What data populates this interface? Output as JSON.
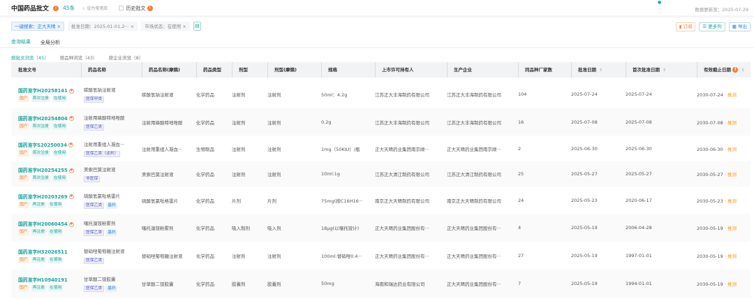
{
  "header": {
    "title": "中国药品批文",
    "count": "45条",
    "favorite": "设为常用库",
    "history": "历史批文",
    "update": "数据更新至：2025-07-29",
    "dot": "●"
  },
  "filters": [
    {
      "label": "一键搜索：正大天晴",
      "active": true
    },
    {
      "label": "批准日期：2025-01-01,2···",
      "active": false
    },
    {
      "label": "市场状态：在使用",
      "active": false
    }
  ],
  "actions": {
    "subscribe": "订阅",
    "more_cols": "更多列",
    "export": "导出"
  },
  "tabs": [
    {
      "label": "查询结果",
      "active": true
    },
    {
      "label": "全局分析",
      "active": false
    }
  ],
  "subtabs": [
    {
      "label": "按批文浏览（45）",
      "active": true
    },
    {
      "label": "按品种浏览（43）",
      "active": false
    },
    {
      "label": "按企业浏览（8）",
      "active": false
    }
  ],
  "columns": [
    "批准文号",
    "药品名称",
    "药品名称(摩熵)",
    "药品类型",
    "剂型",
    "剂型(摩熵)",
    "规格",
    "上市许可持有人",
    "生产企业",
    "同品种厂家数",
    "批准日期",
    "首次批准日期",
    "有效截止日期"
  ],
  "guess_label": "推测",
  "rows": [
    {
      "code": "国药准字H20258141",
      "badge": true,
      "tags": [
        "国产",
        "首次注册",
        "在使用"
      ],
      "name": "碳酸氢钠注射液",
      "ins": [
        "医保甲类"
      ],
      "name2": "碳酸氢钠注射液",
      "type": "化学药品",
      "form": "注射剂",
      "form2": "注射剂",
      "spec": "50ml：4.2g",
      "holder": "江苏正大丰海制药有限公司",
      "maker": "江苏正大丰海制药有限公司",
      "n": "104",
      "date": "2025-07-24",
      "first": "2025-07-24",
      "expire": "2030-07-24"
    },
    {
      "code": "国药准字H20254804",
      "badge": true,
      "tags": [
        "国产",
        "首次注册",
        "在使用"
      ],
      "name": "注射用磷酸特地唑胺",
      "ins": [
        "医保乙类"
      ],
      "name2": "注射用磷酸特地唑胺",
      "type": "化学药品",
      "form": "注射剂",
      "form2": "注射剂",
      "spec": "0.2g",
      "holder": "江苏正大丰海制药有限公司",
      "maker": "江苏正大丰海制药有限公司",
      "n": "16",
      "date": "2025-07-08",
      "first": "2025-07-08",
      "expire": "2030-07-08"
    },
    {
      "code": "国药准字S20250034",
      "badge": true,
      "tags": [
        "国产",
        "首次注册",
        "在使用"
      ],
      "name": "注射用重组人凝血···",
      "ins": [
        "医保乙类（谈判）"
      ],
      "name2": "注射用重组人凝血···",
      "type": "生物制品",
      "form": "注射剂",
      "form2": "注射剂",
      "spec": "1mg（50KIU）/瓶",
      "holder": "正大天晴药业集团南京顺···",
      "maker": "正大天晴药业集团南京顺···",
      "n": "2",
      "date": "2025-06-30",
      "first": "2025-06-30",
      "expire": "2030-06-30"
    },
    {
      "code": "国药准字H20254255",
      "badge": true,
      "tags": [
        "国产",
        "首次注册",
        "在使用"
      ],
      "name": "美索巴莫注射液",
      "ins": [
        "非医保"
      ],
      "name2": "美索巴莫注射液",
      "type": "化学药品",
      "form": "注射剂",
      "form2": "注射剂",
      "spec": "10ml:1g",
      "holder": "江苏正大清江制药有限公司",
      "maker": "江苏正大清江制药有限公司",
      "n": "25",
      "date": "2025-05-27",
      "first": "2025-05-27",
      "expire": "2030-05-27"
    },
    {
      "code": "国药准字H20203269",
      "badge": true,
      "tags": [
        "国产",
        "再注册",
        "在使用"
      ],
      "name": "硫酸氢氯吡格雷片",
      "ins": [
        "医保乙类",
        "基药"
      ],
      "name2": "硫酸氢氯吡格雷片",
      "type": "化学药品",
      "form": "片剂",
      "form2": "片剂",
      "spec": "75mg(按C16H16···",
      "holder": "南京正大天晴制药有限公司",
      "maker": "南京正大天晴制药有限公司",
      "n": "24",
      "date": "2025-05-23",
      "first": "2020-06-17",
      "expire": "2030-05-23"
    },
    {
      "code": "国药准字H20060454",
      "badge": true,
      "tags": [
        "国产",
        "再注册",
        "在使用"
      ],
      "name": "噻托溴铵粉雾剂",
      "ins": [
        "医保乙类",
        "基药"
      ],
      "name2": "噻托溴铵粉雾剂",
      "type": "化学药品",
      "form": "吸入制剂",
      "form2": "吸入剂",
      "spec": "18μg(以噻托铵计)",
      "holder": "正大天晴药业集团股份有···",
      "maker": "正大天晴药业集团股份有···",
      "n": "4",
      "date": "2025-05-19",
      "first": "2006-04-28",
      "expire": "2030-05-19"
    },
    {
      "code": "国药准字H32026511",
      "badge": false,
      "tags": [
        "国产",
        "再注册",
        "在使用"
      ],
      "name": "替硝唑葡萄糖注射液",
      "ins": [
        "医保乙类"
      ],
      "name2": "替硝唑葡萄糖注射液",
      "type": "化学药品",
      "form": "注射剂",
      "form2": "注射剂",
      "spec": "100ml:替硝唑0.4···",
      "holder": "正大天晴药业集团股份有···",
      "maker": "正大天晴药业集团股份有···",
      "n": "27",
      "date": "2025-05-19",
      "first": "1997-01-01",
      "expire": "2030-05-19"
    },
    {
      "code": "国药准字H10940191",
      "badge": false,
      "tags": [
        "国产",
        "再注册",
        "在使用"
      ],
      "name": "甘草酸二铵胶囊",
      "ins": [
        "医保乙类",
        "基药"
      ],
      "name2": "甘草酸二铵胶囊",
      "type": "化学药品",
      "form": "胶囊剂",
      "form2": "胶囊剂",
      "spec": "50mg",
      "holder": "海南和瑞达药业有限公司",
      "maker": "正大天晴药业集团股份有···",
      "n": "7",
      "date": "2025-05-19",
      "first": "1994-01-01",
      "expire": "2030-05-19"
    }
  ]
}
